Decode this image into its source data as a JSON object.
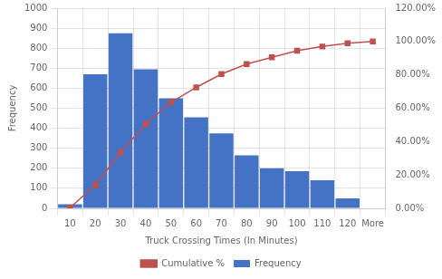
{
  "chart_data": {
    "type": "bar",
    "xlabel": "Truck Crossing Times (In Minutes)",
    "ylabel": "Frequency",
    "categories": [
      "10",
      "20",
      "30",
      "40",
      "50",
      "60",
      "70",
      "80",
      "90",
      "100",
      "110",
      "120",
      "More"
    ],
    "series": [
      {
        "name": "Frequency",
        "type": "bar",
        "color": "#4472C4",
        "values": [
          20,
          670,
          875,
          695,
          550,
          455,
          375,
          265,
          200,
          185,
          140,
          50,
          0
        ]
      },
      {
        "name": "Cumulative %",
        "type": "line",
        "axis": "y2",
        "color": "#C0504D",
        "marker": "square",
        "values": [
          0.4,
          14.0,
          33.5,
          50.5,
          63.5,
          72.5,
          80.5,
          86.5,
          90.5,
          94.5,
          97.0,
          99.0,
          100.0
        ]
      }
    ],
    "ylim": [
      0,
      1000
    ],
    "yticks": [
      0,
      100,
      200,
      300,
      400,
      500,
      600,
      700,
      800,
      900,
      1000
    ],
    "y2lim": [
      0,
      120
    ],
    "y2ticks": [
      {
        "value": 0,
        "label": "0.00%"
      },
      {
        "value": 20,
        "label": "20.00%"
      },
      {
        "value": 40,
        "label": "40.00%"
      },
      {
        "value": 60,
        "label": "60.00%"
      },
      {
        "value": 80,
        "label": "80.00%"
      },
      {
        "value": 100,
        "label": "100.00%"
      },
      {
        "value": 120,
        "label": "120.00%"
      }
    ],
    "grid": true,
    "legend": "bottom"
  }
}
